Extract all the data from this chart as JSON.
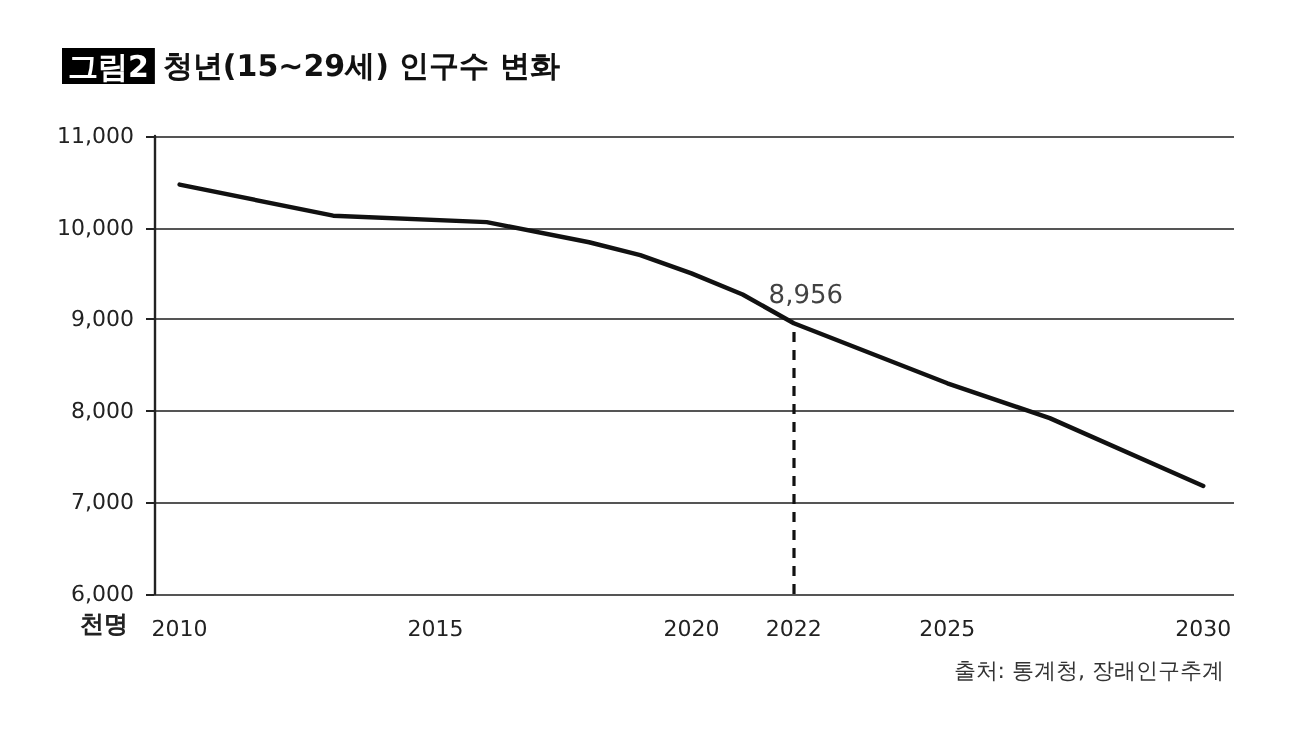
{
  "chart_data": {
    "type": "line",
    "title": "그림2 청년(15~29세) 인구수 변화",
    "ylabel": "천명",
    "annotations": [
      {
        "text": "8,956",
        "x": 2022,
        "y": 8956
      },
      "출처: 통계청, 장래인구추계"
    ],
    "series": [
      {
        "color": "#111111",
        "x": [
          2010,
          2013,
          2016,
          2018,
          2019,
          2020,
          2021,
          2022,
          2025,
          2027,
          2030
        ],
        "values": [
          10470,
          10130,
          10060,
          9840,
          9700,
          9500,
          9270,
          8956,
          8300,
          7920,
          7180
        ]
      }
    ],
    "xlim": [
      2009.5,
      2030.6
    ],
    "xticks": [
      2010,
      2015,
      2020,
      2022,
      2025,
      2030
    ],
    "ylim": [
      6000,
      11000
    ],
    "yticks": [
      {
        "value": 6000,
        "label": "6,000"
      },
      {
        "value": 7000,
        "label": "7,000"
      },
      {
        "value": 8000,
        "label": "8,000"
      },
      {
        "value": 9000,
        "label": "9,000"
      },
      {
        "value": 10000,
        "label": "10,000"
      },
      {
        "value": 11000,
        "label": "11,000"
      }
    ],
    "ref_lines": [
      {
        "axis": "x",
        "value": 2022,
        "line_style": "dashed",
        "color": "#111111"
      }
    ],
    "grid": "y",
    "marker": "none",
    "line_style": "solid"
  }
}
